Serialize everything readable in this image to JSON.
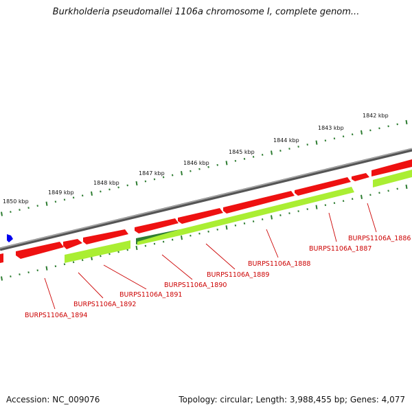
{
  "title": "Burkholderia pseudomallei 1106a chromosome I, complete genom...",
  "accession": "Accession: NC_009076",
  "topology": "Topology: circular; Length: 3,988,455 bp; Genes: 4,077",
  "colors": {
    "forward_gene": "#ee1111",
    "reverse_gene": "#aaee33",
    "reverse_gene_highlight": "#2e7d32",
    "backbone": "#888888",
    "ticks": "#2e7d32",
    "label": "#cc0000",
    "marker": "#0000ee"
  },
  "kbp_labels": [
    "1842 kbp",
    "1843 kbp",
    "1844 kbp",
    "1845 kbp",
    "1846 kbp",
    "1847 kbp",
    "1848 kbp",
    "1849 kbp",
    "1850 kbp"
  ],
  "gene_labels": [
    "BURPS1106A_1886",
    "BURPS1106A_1887",
    "BURPS1106A_1888",
    "BURPS1106A_1889",
    "BURPS1106A_1890",
    "BURPS1106A_1891",
    "BURPS1106A_1892",
    "BURPS1106A_1894"
  ]
}
